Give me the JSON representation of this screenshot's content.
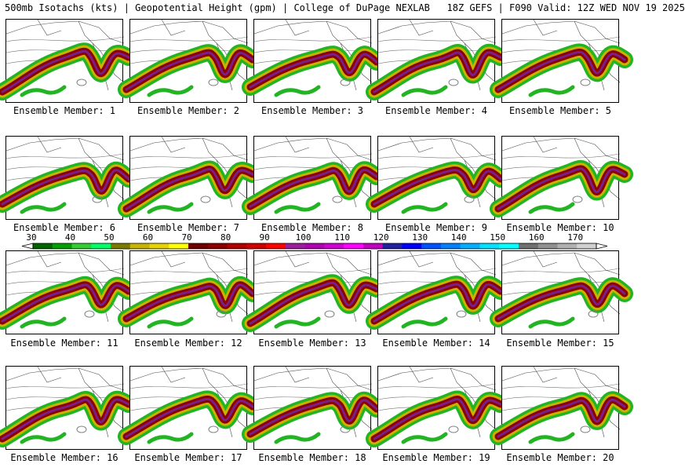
{
  "header": {
    "title": "500mb Isotachs (kts) | Geopotential Height (gpm) | College of DuPage NEXLAB   18Z GEFS | F090 Valid: 12Z WED NOV 19 2025"
  },
  "panels": [
    {
      "label": "Ensemble Member: 1"
    },
    {
      "label": "Ensemble Member: 2"
    },
    {
      "label": "Ensemble Member: 3"
    },
    {
      "label": "Ensemble Member: 4"
    },
    {
      "label": "Ensemble Member: 5"
    },
    {
      "label": "Ensemble Member: 6"
    },
    {
      "label": "Ensemble Member: 7"
    },
    {
      "label": "Ensemble Member: 8"
    },
    {
      "label": "Ensemble Member: 9"
    },
    {
      "label": "Ensemble Member: 10"
    },
    {
      "label": "Ensemble Member: 11"
    },
    {
      "label": "Ensemble Member: 12"
    },
    {
      "label": "Ensemble Member: 13"
    },
    {
      "label": "Ensemble Member: 14"
    },
    {
      "label": "Ensemble Member: 15"
    },
    {
      "label": "Ensemble Member: 16"
    },
    {
      "label": "Ensemble Member: 17"
    },
    {
      "label": "Ensemble Member: 18"
    },
    {
      "label": "Ensemble Member: 19"
    },
    {
      "label": "Ensemble Member: 20"
    }
  ],
  "legend": {
    "units": "kts",
    "ticks": [
      "30",
      "40",
      "50",
      "60",
      "70",
      "80",
      "90",
      "100",
      "110",
      "120",
      "130",
      "140",
      "150",
      "160",
      "170"
    ],
    "colors": [
      "#006400",
      "#00a000",
      "#32cd32",
      "#00ff66",
      "#7a7a00",
      "#c8b400",
      "#e6d200",
      "#ffff00",
      "#6e0000",
      "#8b0000",
      "#b00000",
      "#d00000",
      "#ff0000",
      "#9b1d9b",
      "#b000b0",
      "#d000d0",
      "#ff00ff",
      "#c000c0",
      "#2020a0",
      "#0000ff",
      "#0050ff",
      "#0080ff",
      "#00b0ff",
      "#00e0ff",
      "#00ffff",
      "#707070",
      "#909090",
      "#b0b0b0",
      "#d0d0d0"
    ]
  },
  "map_colors": {
    "band_outer": "#22b422",
    "band_mid": "#c8b400",
    "band_inner": "#8b0000",
    "core": "#7a1f8a",
    "contour": "#000000",
    "borders": "#000000"
  }
}
